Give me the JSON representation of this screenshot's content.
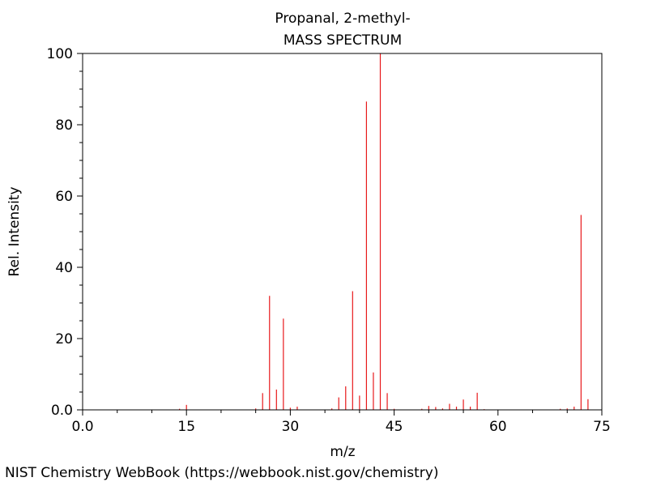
{
  "chart_data": {
    "type": "bar",
    "title": "Propanal, 2-methyl-",
    "subtitle": "MASS SPECTRUM",
    "xlabel": "m/z",
    "ylabel": "Rel. Intensity",
    "xlim": [
      0,
      75
    ],
    "ylim": [
      0,
      100
    ],
    "x_ticks": [
      0,
      15,
      30,
      45,
      60,
      75
    ],
    "x_tick_labels": [
      "0.0",
      "15",
      "30",
      "45",
      "60",
      "75"
    ],
    "y_ticks": [
      0,
      20,
      40,
      60,
      80,
      100
    ],
    "y_tick_labels": [
      "0.0",
      "20",
      "40",
      "60",
      "80",
      "100"
    ],
    "grid": false,
    "line_color": "#e8191b",
    "peaks": [
      {
        "mz": 14,
        "intensity": 0.3
      },
      {
        "mz": 15,
        "intensity": 1.4
      },
      {
        "mz": 25,
        "intensity": 0.4
      },
      {
        "mz": 26,
        "intensity": 4.7
      },
      {
        "mz": 27,
        "intensity": 32.0
      },
      {
        "mz": 28,
        "intensity": 5.7
      },
      {
        "mz": 29,
        "intensity": 25.6
      },
      {
        "mz": 30,
        "intensity": 0.6
      },
      {
        "mz": 31,
        "intensity": 0.9
      },
      {
        "mz": 36,
        "intensity": 0.4
      },
      {
        "mz": 37,
        "intensity": 3.5
      },
      {
        "mz": 38,
        "intensity": 6.6
      },
      {
        "mz": 39,
        "intensity": 33.3
      },
      {
        "mz": 40,
        "intensity": 4.0
      },
      {
        "mz": 41,
        "intensity": 86.5
      },
      {
        "mz": 42,
        "intensity": 10.5
      },
      {
        "mz": 43,
        "intensity": 100.0
      },
      {
        "mz": 44,
        "intensity": 4.7
      },
      {
        "mz": 45,
        "intensity": 0.3
      },
      {
        "mz": 49,
        "intensity": 0.3
      },
      {
        "mz": 50,
        "intensity": 1.1
      },
      {
        "mz": 51,
        "intensity": 0.8
      },
      {
        "mz": 52,
        "intensity": 0.4
      },
      {
        "mz": 53,
        "intensity": 1.7
      },
      {
        "mz": 54,
        "intensity": 0.9
      },
      {
        "mz": 55,
        "intensity": 2.9
      },
      {
        "mz": 56,
        "intensity": 0.9
      },
      {
        "mz": 57,
        "intensity": 4.8
      },
      {
        "mz": 58,
        "intensity": 0.2
      },
      {
        "mz": 69,
        "intensity": 0.3
      },
      {
        "mz": 70,
        "intensity": 0.4
      },
      {
        "mz": 71,
        "intensity": 0.9
      },
      {
        "mz": 72,
        "intensity": 54.7
      },
      {
        "mz": 73,
        "intensity": 3.0
      }
    ]
  },
  "footer": "NIST Chemistry WebBook (https://webbook.nist.gov/chemistry)"
}
